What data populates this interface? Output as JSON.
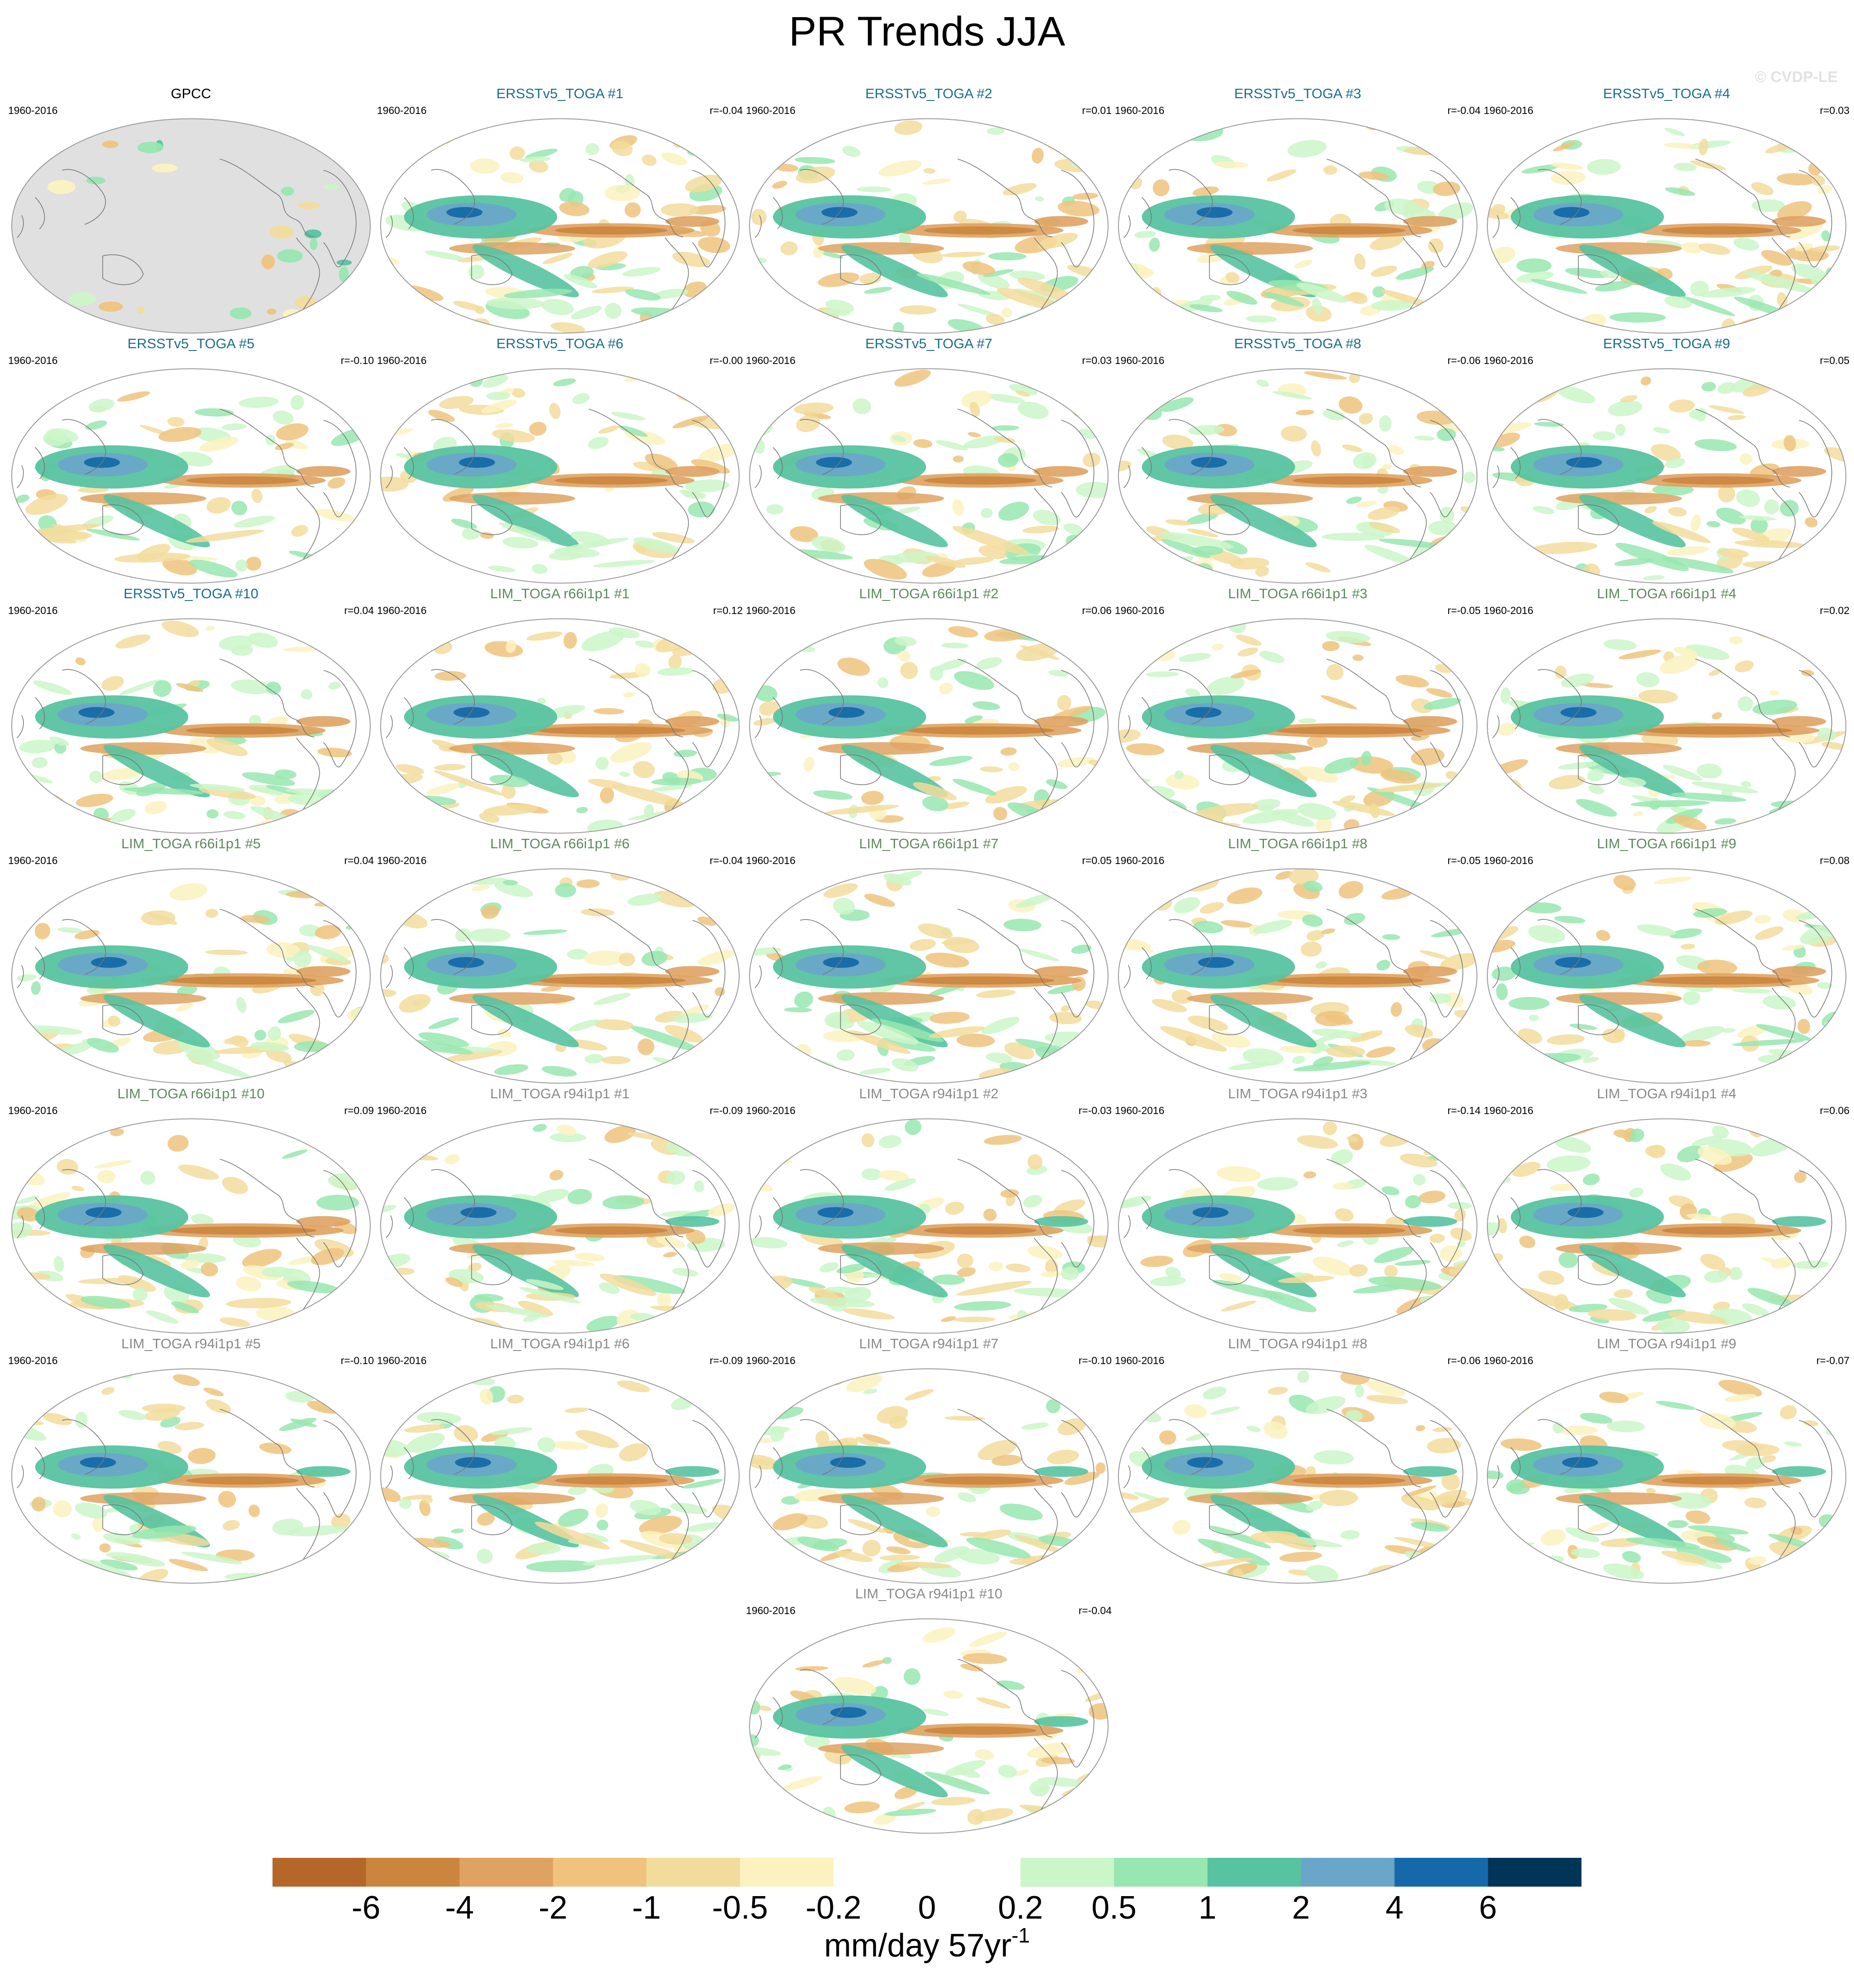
{
  "title": "PR Trends JJA",
  "watermark": "© CVDP-LE",
  "panels": [
    {
      "title": "GPCC",
      "period": "1960-2016",
      "corr": "",
      "group": "obs",
      "seed": 1
    },
    {
      "title": "ERSSTv5_TOGA #1",
      "period": "1960-2016",
      "corr": "r=-0.04",
      "group": "ersst",
      "seed": 2
    },
    {
      "title": "ERSSTv5_TOGA #2",
      "period": "1960-2016",
      "corr": "r=0.01",
      "group": "ersst",
      "seed": 3
    },
    {
      "title": "ERSSTv5_TOGA #3",
      "period": "1960-2016",
      "corr": "r=-0.04",
      "group": "ersst",
      "seed": 4
    },
    {
      "title": "ERSSTv5_TOGA #4",
      "period": "1960-2016",
      "corr": "r=0.03",
      "group": "ersst",
      "seed": 5
    },
    {
      "title": "ERSSTv5_TOGA #5",
      "period": "1960-2016",
      "corr": "r=-0.10",
      "group": "ersst",
      "seed": 6
    },
    {
      "title": "ERSSTv5_TOGA #6",
      "period": "1960-2016",
      "corr": "r=-0.00",
      "group": "ersst",
      "seed": 7
    },
    {
      "title": "ERSSTv5_TOGA #7",
      "period": "1960-2016",
      "corr": "r=0.03",
      "group": "ersst",
      "seed": 8
    },
    {
      "title": "ERSSTv5_TOGA #8",
      "period": "1960-2016",
      "corr": "r=-0.06",
      "group": "ersst",
      "seed": 9
    },
    {
      "title": "ERSSTv5_TOGA #9",
      "period": "1960-2016",
      "corr": "r=0.05",
      "group": "ersst",
      "seed": 10
    },
    {
      "title": "ERSSTv5_TOGA #10",
      "period": "1960-2016",
      "corr": "r=0.04",
      "group": "ersst",
      "seed": 11
    },
    {
      "title": "LIM_TOGA r66i1p1 #1",
      "period": "1960-2016",
      "corr": "r=0.12",
      "group": "r66",
      "seed": 12
    },
    {
      "title": "LIM_TOGA r66i1p1 #2",
      "period": "1960-2016",
      "corr": "r=0.06",
      "group": "r66",
      "seed": 13
    },
    {
      "title": "LIM_TOGA r66i1p1 #3",
      "period": "1960-2016",
      "corr": "r=-0.05",
      "group": "r66",
      "seed": 14
    },
    {
      "title": "LIM_TOGA r66i1p1 #4",
      "period": "1960-2016",
      "corr": "r=0.02",
      "group": "r66",
      "seed": 15
    },
    {
      "title": "LIM_TOGA r66i1p1 #5",
      "period": "1960-2016",
      "corr": "r=0.04",
      "group": "r66",
      "seed": 16
    },
    {
      "title": "LIM_TOGA r66i1p1 #6",
      "period": "1960-2016",
      "corr": "r=-0.04",
      "group": "r66",
      "seed": 17
    },
    {
      "title": "LIM_TOGA r66i1p1 #7",
      "period": "1960-2016",
      "corr": "r=0.05",
      "group": "r66",
      "seed": 18
    },
    {
      "title": "LIM_TOGA r66i1p1 #8",
      "period": "1960-2016",
      "corr": "r=-0.05",
      "group": "r66",
      "seed": 19
    },
    {
      "title": "LIM_TOGA r66i1p1 #9",
      "period": "1960-2016",
      "corr": "r=0.08",
      "group": "r66",
      "seed": 20
    },
    {
      "title": "LIM_TOGA r66i1p1 #10",
      "period": "1960-2016",
      "corr": "r=0.09",
      "group": "r66",
      "seed": 21
    },
    {
      "title": "LIM_TOGA r94i1p1 #1",
      "period": "1960-2016",
      "corr": "r=-0.09",
      "group": "r94",
      "seed": 22
    },
    {
      "title": "LIM_TOGA r94i1p1 #2",
      "period": "1960-2016",
      "corr": "r=-0.03",
      "group": "r94",
      "seed": 23
    },
    {
      "title": "LIM_TOGA r94i1p1 #3",
      "period": "1960-2016",
      "corr": "r=-0.14",
      "group": "r94",
      "seed": 24
    },
    {
      "title": "LIM_TOGA r94i1p1 #4",
      "period": "1960-2016",
      "corr": "r=0.06",
      "group": "r94",
      "seed": 25
    },
    {
      "title": "LIM_TOGA r94i1p1 #5",
      "period": "1960-2016",
      "corr": "r=-0.10",
      "group": "r94",
      "seed": 26
    },
    {
      "title": "LIM_TOGA r94i1p1 #6",
      "period": "1960-2016",
      "corr": "r=-0.09",
      "group": "r94",
      "seed": 27
    },
    {
      "title": "LIM_TOGA r94i1p1 #7",
      "period": "1960-2016",
      "corr": "r=-0.10",
      "group": "r94",
      "seed": 28
    },
    {
      "title": "LIM_TOGA r94i1p1 #8",
      "period": "1960-2016",
      "corr": "r=-0.06",
      "group": "r94",
      "seed": 29
    },
    {
      "title": "LIM_TOGA r94i1p1 #9",
      "period": "1960-2016",
      "corr": "r=-0.07",
      "group": "r94",
      "seed": 30
    },
    {
      "title": "LIM_TOGA r94i1p1 #10",
      "period": "1960-2016",
      "corr": "r=-0.04",
      "group": "r94",
      "seed": 31
    }
  ],
  "title_colors": {
    "obs": "#000000",
    "ersst": "#1a6e8c",
    "r66": "#5e8a5e",
    "r94": "#8a8a8a"
  },
  "land_color": "#e0e0e0",
  "colorbar": {
    "colors": [
      "#b5672a",
      "#cc853d",
      "#dea262",
      "#efc37e",
      "#f2dc9c",
      "#fbf2c0",
      "#ffffff",
      "#ffffff",
      "#cbf6c8",
      "#98e6b0",
      "#57c3a0",
      "#6aa6c8",
      "#1569a8",
      "#003558"
    ],
    "tick_labels": [
      "-6",
      "-4",
      "-2",
      "-1",
      "-0.5",
      "-0.2",
      "0",
      "0.2",
      "0.5",
      "1",
      "2",
      "4",
      "6"
    ],
    "units": "mm/day 57yr",
    "units_exp": "-1"
  },
  "chart_data": {
    "type": "heatmap",
    "title": "PR Trends JJA",
    "units": "mm/day 57yr-1",
    "panels": [
      {
        "name": "GPCC",
        "period": "1960-2016"
      },
      {
        "name": "ERSSTv5_TOGA #1",
        "period": "1960-2016",
        "r": -0.04
      },
      {
        "name": "ERSSTv5_TOGA #2",
        "period": "1960-2016",
        "r": 0.01
      },
      {
        "name": "ERSSTv5_TOGA #3",
        "period": "1960-2016",
        "r": -0.04
      },
      {
        "name": "ERSSTv5_TOGA #4",
        "period": "1960-2016",
        "r": 0.03
      },
      {
        "name": "ERSSTv5_TOGA #5",
        "period": "1960-2016",
        "r": -0.1
      },
      {
        "name": "ERSSTv5_TOGA #6",
        "period": "1960-2016",
        "r": -0.0
      },
      {
        "name": "ERSSTv5_TOGA #7",
        "period": "1960-2016",
        "r": 0.03
      },
      {
        "name": "ERSSTv5_TOGA #8",
        "period": "1960-2016",
        "r": -0.06
      },
      {
        "name": "ERSSTv5_TOGA #9",
        "period": "1960-2016",
        "r": 0.05
      },
      {
        "name": "ERSSTv5_TOGA #10",
        "period": "1960-2016",
        "r": 0.04
      },
      {
        "name": "LIM_TOGA r66i1p1 #1",
        "period": "1960-2016",
        "r": 0.12
      },
      {
        "name": "LIM_TOGA r66i1p1 #2",
        "period": "1960-2016",
        "r": 0.06
      },
      {
        "name": "LIM_TOGA r66i1p1 #3",
        "period": "1960-2016",
        "r": -0.05
      },
      {
        "name": "LIM_TOGA r66i1p1 #4",
        "period": "1960-2016",
        "r": 0.02
      },
      {
        "name": "LIM_TOGA r66i1p1 #5",
        "period": "1960-2016",
        "r": 0.04
      },
      {
        "name": "LIM_TOGA r66i1p1 #6",
        "period": "1960-2016",
        "r": -0.04
      },
      {
        "name": "LIM_TOGA r66i1p1 #7",
        "period": "1960-2016",
        "r": 0.05
      },
      {
        "name": "LIM_TOGA r66i1p1 #8",
        "period": "1960-2016",
        "r": -0.05
      },
      {
        "name": "LIM_TOGA r66i1p1 #9",
        "period": "1960-2016",
        "r": 0.08
      },
      {
        "name": "LIM_TOGA r66i1p1 #10",
        "period": "1960-2016",
        "r": 0.09
      },
      {
        "name": "LIM_TOGA r94i1p1 #1",
        "period": "1960-2016",
        "r": -0.09
      },
      {
        "name": "LIM_TOGA r94i1p1 #2",
        "period": "1960-2016",
        "r": -0.03
      },
      {
        "name": "LIM_TOGA r94i1p1 #3",
        "period": "1960-2016",
        "r": -0.14
      },
      {
        "name": "LIM_TOGA r94i1p1 #4",
        "period": "1960-2016",
        "r": 0.06
      },
      {
        "name": "LIM_TOGA r94i1p1 #5",
        "period": "1960-2016",
        "r": -0.1
      },
      {
        "name": "LIM_TOGA r94i1p1 #6",
        "period": "1960-2016",
        "r": -0.09
      },
      {
        "name": "LIM_TOGA r94i1p1 #7",
        "period": "1960-2016",
        "r": -0.1
      },
      {
        "name": "LIM_TOGA r94i1p1 #8",
        "period": "1960-2016",
        "r": -0.06
      },
      {
        "name": "LIM_TOGA r94i1p1 #9",
        "period": "1960-2016",
        "r": -0.07
      },
      {
        "name": "LIM_TOGA r94i1p1 #10",
        "period": "1960-2016",
        "r": -0.04
      }
    ],
    "colorbar_levels": [
      -6,
      -4,
      -2,
      -1,
      -0.5,
      -0.2,
      0,
      0.2,
      0.5,
      1,
      2,
      4,
      6
    ]
  }
}
